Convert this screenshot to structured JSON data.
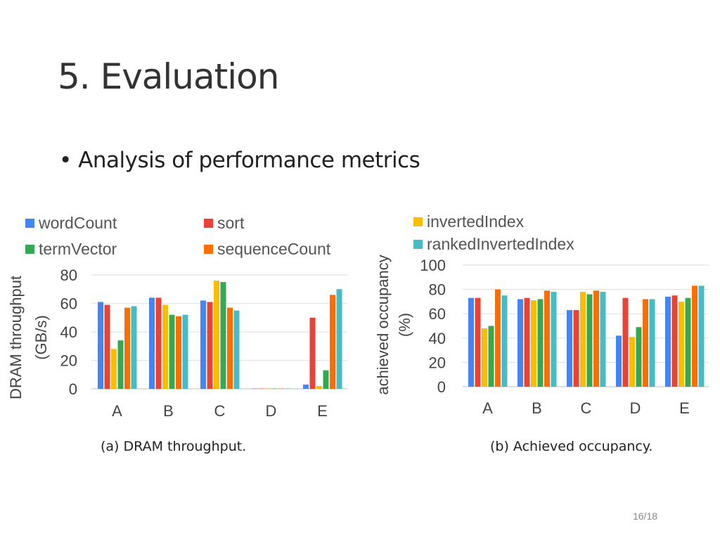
{
  "slide": {
    "title": "5. Evaluation",
    "bullet": "Analysis of performance metrics",
    "page_number": "16/18",
    "captions": [
      "(a) DRAM throughput.",
      "(b) Achieved occupancy."
    ]
  },
  "series_colors": {
    "wordCount": "#4285f4",
    "sort": "#ea4335",
    "invertedIndex": "#fbbc04",
    "termVector": "#34a853",
    "sequenceCount": "#ff6d01",
    "rankedInvertedIndex": "#46bdc6"
  },
  "legend": [
    "wordCount",
    "sort",
    "termVector",
    "sequenceCount",
    "invertedIndex",
    "rankedInvertedIndex"
  ],
  "chart_data": [
    {
      "type": "bar",
      "title": "(a) DRAM throughput.",
      "xlabel": "",
      "ylabel": "DRAM throughput (GB/s)",
      "ylabel_lines": [
        "DRAM throughput",
        "(GB/s)"
      ],
      "categories": [
        "A",
        "B",
        "C",
        "D",
        "E"
      ],
      "ylim": [
        0,
        80
      ],
      "yticks": [
        0,
        20,
        40,
        60,
        80
      ],
      "grid": true,
      "series": [
        {
          "name": "wordCount",
          "values": [
            61,
            64,
            62,
            0.5,
            3
          ]
        },
        {
          "name": "sort",
          "values": [
            59,
            64,
            61,
            0.5,
            50
          ]
        },
        {
          "name": "invertedIndex",
          "values": [
            28,
            59,
            76,
            0.5,
            2
          ]
        },
        {
          "name": "termVector",
          "values": [
            34,
            52,
            75,
            0.5,
            13
          ]
        },
        {
          "name": "sequenceCount",
          "values": [
            57,
            51,
            57,
            0.5,
            66
          ]
        },
        {
          "name": "rankedInvertedIndex",
          "values": [
            58,
            52,
            55,
            0.5,
            70
          ]
        }
      ]
    },
    {
      "type": "bar",
      "title": "(b) Achieved occupancy.",
      "xlabel": "",
      "ylabel": "achieved occupancy (%)",
      "ylabel_lines": [
        "achieved occupancy",
        "(%)"
      ],
      "categories": [
        "A",
        "B",
        "C",
        "D",
        "E"
      ],
      "ylim": [
        0,
        100
      ],
      "yticks": [
        0,
        20,
        40,
        60,
        80,
        100
      ],
      "grid": true,
      "series": [
        {
          "name": "wordCount",
          "values": [
            73,
            72,
            63,
            42,
            74
          ]
        },
        {
          "name": "sort",
          "values": [
            73,
            73,
            63,
            73,
            75
          ]
        },
        {
          "name": "invertedIndex",
          "values": [
            48,
            71,
            78,
            41,
            70
          ]
        },
        {
          "name": "termVector",
          "values": [
            50,
            72,
            76,
            49,
            73
          ]
        },
        {
          "name": "sequenceCount",
          "values": [
            80,
            79,
            79,
            72,
            83
          ]
        },
        {
          "name": "rankedInvertedIndex",
          "values": [
            75,
            78,
            78,
            72,
            83
          ]
        }
      ]
    }
  ]
}
